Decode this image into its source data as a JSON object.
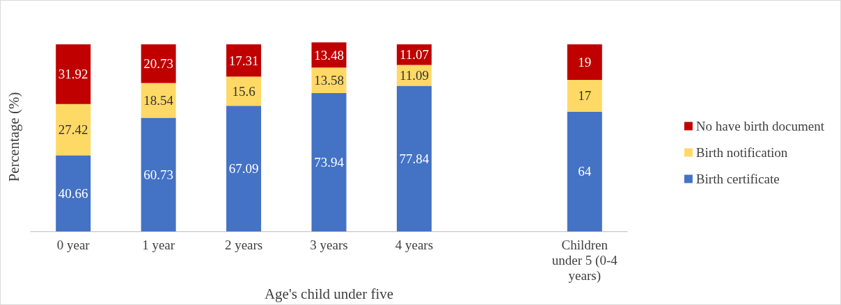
{
  "chart_data": {
    "type": "bar",
    "stacked": true,
    "xlabel": "Age's child under five",
    "ylabel": "Percentage (%)",
    "categories": [
      "0 year",
      "1 year",
      "2 years",
      "3 years",
      "4 years",
      null,
      "Children under 5 (0-4 years)"
    ],
    "series": [
      {
        "name": "Birth certificate",
        "color": "#4472c4",
        "values": [
          40.66,
          60.73,
          67.09,
          73.94,
          77.84,
          null,
          64
        ]
      },
      {
        "name": "Birth notification",
        "color": "#ffd966",
        "values": [
          27.42,
          18.54,
          15.6,
          13.58,
          11.09,
          null,
          17
        ]
      },
      {
        "name": "No have birth document",
        "color": "#c00000",
        "values": [
          31.92,
          20.73,
          17.31,
          13.48,
          11.07,
          null,
          19
        ]
      }
    ],
    "data_labels": true,
    "legend": "right",
    "grid": false,
    "tick_labels": "x"
  }
}
